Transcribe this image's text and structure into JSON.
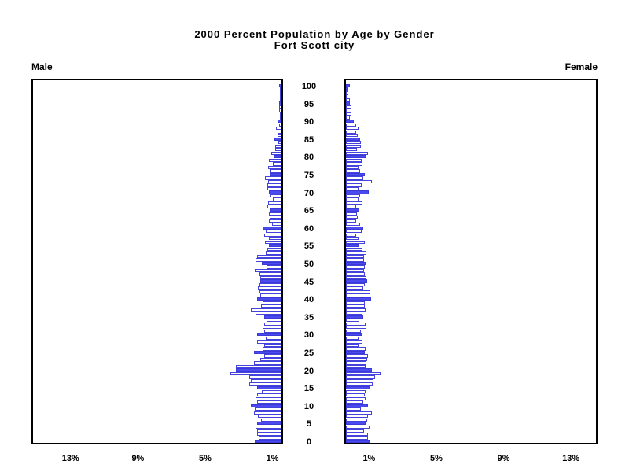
{
  "title_line1": "2000 Percent Population by Age by Gender",
  "title_line2": "Fort Scott city",
  "left_panel_label": "Male",
  "right_panel_label": "Female",
  "colors": {
    "bar_fill_highlight": "#4a4aee",
    "bar_outline": "#4444dd",
    "bar_fill_regular": "#ffffff",
    "axis_frame": "#000000",
    "text": "#000000",
    "background": "#ffffff"
  },
  "axes": {
    "left_x_tick_labels": [
      "13%",
      "9%",
      "5%",
      "1%"
    ],
    "right_x_tick_labels": [
      "1%",
      "5%",
      "9%",
      "13%"
    ],
    "x_tick_values": [
      1,
      5,
      9,
      13
    ],
    "age_tick_values": [
      0,
      5,
      10,
      15,
      20,
      25,
      30,
      35,
      40,
      45,
      50,
      55,
      60,
      65,
      70,
      75,
      80,
      85,
      90,
      95,
      100
    ],
    "x_unit": "percent of population",
    "xlim_each_side": [
      0,
      15
    ]
  },
  "chart_data": {
    "type": "bar",
    "subtype": "population-pyramid",
    "title": "2000 Percent Population by Age by Gender",
    "subtitle": "Fort Scott city",
    "orientation": "horizontal-mirrored",
    "highlight_rule": "bars at ages divisible by 5 are filled blue; others are white with blue outline",
    "ages": "0 to 100 by 1 (index = age)",
    "x_ticks_percent": [
      1,
      5,
      9,
      13
    ],
    "series": [
      {
        "name": "Male",
        "side": "left",
        "values_percent": [
          1.6,
          1.36,
          1.44,
          1.44,
          1.55,
          1.44,
          1.21,
          1.4,
          1.64,
          1.58,
          1.83,
          1.44,
          1.52,
          1.47,
          1.15,
          1.47,
          1.91,
          1.8,
          1.91,
          3.02,
          2.71,
          2.73,
          1.64,
          1.24,
          1.05,
          1.63,
          1.13,
          1.05,
          1.45,
          0.95,
          1.44,
          1.01,
          1.1,
          1.05,
          0.9,
          1.05,
          1.52,
          1.83,
          1.21,
          1.13,
          1.44,
          1.24,
          1.32,
          1.38,
          1.32,
          1.26,
          1.26,
          1.33,
          1.57,
          0.9,
          1.16,
          1.52,
          1.44,
          0.94,
          0.82,
          0.74,
          0.98,
          0.74,
          1.01,
          0.94,
          1.1,
          0.54,
          0.74,
          0.7,
          0.74,
          0.64,
          0.85,
          0.78,
          0.51,
          0.67,
          0.74,
          0.85,
          0.85,
          0.79,
          0.98,
          0.7,
          0.65,
          0.81,
          0.51,
          0.73,
          0.47,
          0.59,
          0.39,
          0.39,
          0.19,
          0.43,
          0.23,
          0.25,
          0.34,
          0.12,
          0.23,
          0.06,
          0.08,
          0.12,
          0.12,
          0.16,
          0.05,
          0.03,
          0.05,
          0.03,
          0.12
        ]
      },
      {
        "name": "Female",
        "side": "right",
        "values_percent": [
          1.38,
          1.3,
          1.3,
          1.07,
          1.38,
          1.15,
          1.27,
          1.3,
          1.53,
          0.91,
          1.33,
          1.02,
          1.15,
          1.12,
          1.15,
          1.38,
          1.61,
          1.64,
          1.74,
          2.05,
          1.53,
          1.15,
          1.22,
          1.27,
          1.33,
          1.12,
          1.15,
          0.75,
          0.96,
          0.76,
          0.92,
          0.87,
          1.22,
          1.15,
          0.81,
          1.05,
          0.96,
          1.15,
          1.1,
          1.1,
          1.49,
          1.43,
          1.43,
          1.05,
          1.12,
          1.24,
          1.21,
          1.12,
          1.09,
          1.12,
          1.16,
          1.09,
          1.09,
          1.21,
          0.96,
          0.74,
          1.12,
          0.74,
          0.59,
          0.93,
          1.01,
          0.85,
          0.59,
          0.7,
          0.65,
          0.78,
          0.59,
          0.96,
          0.74,
          0.85,
          1.36,
          0.74,
          0.93,
          1.52,
          1.05,
          1.12,
          0.85,
          0.74,
          0.96,
          0.93,
          1.21,
          1.33,
          0.65,
          0.9,
          0.9,
          0.85,
          0.7,
          0.62,
          0.74,
          0.62,
          0.47,
          0.22,
          0.31,
          0.34,
          0.34,
          0.22,
          0.25,
          0.12,
          0.12,
          0.09,
          0.22
        ]
      }
    ]
  }
}
